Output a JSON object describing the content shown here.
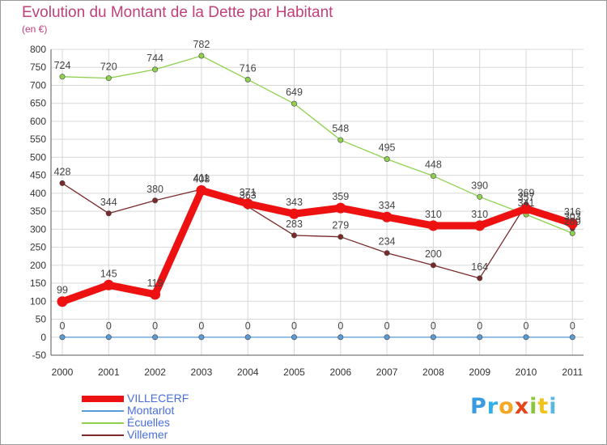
{
  "title": "Evolution du Montant de la Dette par Habitant",
  "subtitle": "(en €)",
  "logo": {
    "text": "Proxiti",
    "letters": [
      "P",
      "r",
      "o",
      "x",
      "i",
      "t",
      "i"
    ]
  },
  "chart_data": {
    "type": "line",
    "title": "Evolution du Montant de la Dette par Habitant",
    "subtitle": "(en €)",
    "xlabel": "",
    "ylabel": "",
    "x": [
      "2000",
      "2001",
      "2002",
      "2003",
      "2004",
      "2005",
      "2006",
      "2007",
      "2008",
      "2009",
      "2010",
      "2011"
    ],
    "ylim": [
      -50,
      800
    ],
    "yticks": [
      -50,
      0,
      50,
      100,
      150,
      200,
      250,
      300,
      350,
      400,
      450,
      500,
      550,
      600,
      650,
      700,
      750,
      800
    ],
    "grid": true,
    "legend_position": "bottom-left",
    "series": [
      {
        "name": "VILLECERF",
        "color": "#ee1111",
        "values": [
          99,
          145,
          119,
          408,
          371,
          343,
          359,
          334,
          310,
          310,
          357,
          316
        ],
        "labels": [
          "99",
          "145",
          "119",
          "408",
          "371",
          "343",
          "359",
          "334",
          "310",
          "310",
          "357",
          "316"
        ]
      },
      {
        "name": "Montarlot",
        "color": "#5b9bd5",
        "values": [
          0,
          0,
          0,
          0,
          0,
          0,
          0,
          0,
          0,
          0,
          0,
          0
        ],
        "labels": [
          "0",
          "0",
          "0",
          "0",
          "0",
          "0",
          "0",
          "0",
          "0",
          "0",
          "0",
          "0"
        ]
      },
      {
        "name": "Écuelles",
        "color": "#8fd14f",
        "values": [
          724,
          720,
          744,
          782,
          716,
          649,
          548,
          495,
          448,
          390,
          341,
          289
        ],
        "labels": [
          "724",
          "720",
          "744",
          "782",
          "716",
          "649",
          "548",
          "495",
          "448",
          "390",
          "341",
          "289"
        ]
      },
      {
        "name": "Villemer",
        "color": "#7a2a2a",
        "values": [
          428,
          344,
          380,
          411,
          363,
          283,
          279,
          234,
          200,
          164,
          369,
          303
        ],
        "labels": [
          "428",
          "344",
          "380",
          "411",
          "363",
          "283",
          "279",
          "234",
          "200",
          "164",
          "369",
          "303"
        ]
      }
    ]
  }
}
